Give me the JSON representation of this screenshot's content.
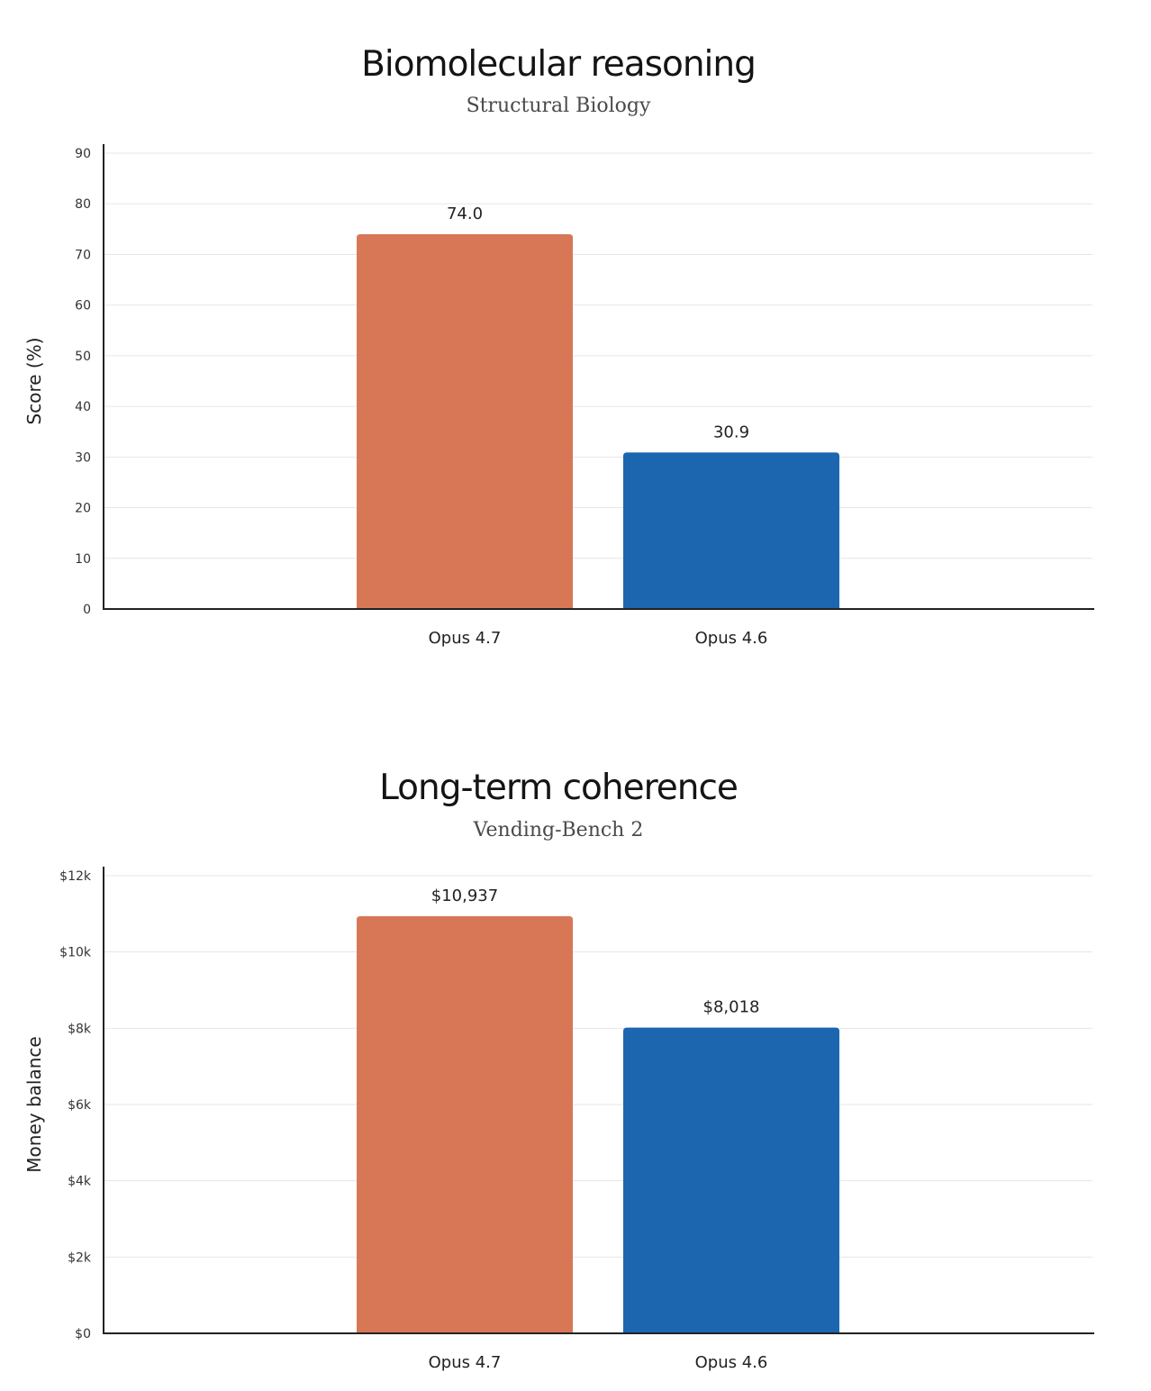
{
  "chart_data": [
    {
      "type": "bar",
      "title": "Biomolecular reasoning",
      "subtitle": "Structural Biology",
      "xlabel": "",
      "ylabel": "Score (%)",
      "ylim": [
        0,
        90
      ],
      "yticks": [
        0,
        10,
        20,
        30,
        40,
        50,
        60,
        70,
        80,
        90
      ],
      "ytick_labels": [
        "0",
        "10",
        "20",
        "30",
        "40",
        "50",
        "60",
        "70",
        "80",
        "90"
      ],
      "categories": [
        "Opus 4.7",
        "Opus 4.6"
      ],
      "values": [
        74.0,
        30.9
      ],
      "value_labels": [
        "74.0",
        "30.9"
      ],
      "colors": [
        "#D77756",
        "#1B66AF"
      ],
      "grid": true
    },
    {
      "type": "bar",
      "title": "Long-term coherence",
      "subtitle": "Vending-Bench 2",
      "xlabel": "",
      "ylabel": "Money balance",
      "ylim": [
        0,
        12000
      ],
      "yticks": [
        0,
        2000,
        4000,
        6000,
        8000,
        10000,
        12000
      ],
      "ytick_labels": [
        "$0",
        "$2k",
        "$4k",
        "$6k",
        "$8k",
        "$10k",
        "$12k"
      ],
      "categories": [
        "Opus 4.7",
        "Opus 4.6"
      ],
      "values": [
        10937,
        8018
      ],
      "value_labels": [
        "$10,937",
        "$8,018"
      ],
      "colors": [
        "#D77756",
        "#1B66AF"
      ],
      "grid": true
    }
  ]
}
